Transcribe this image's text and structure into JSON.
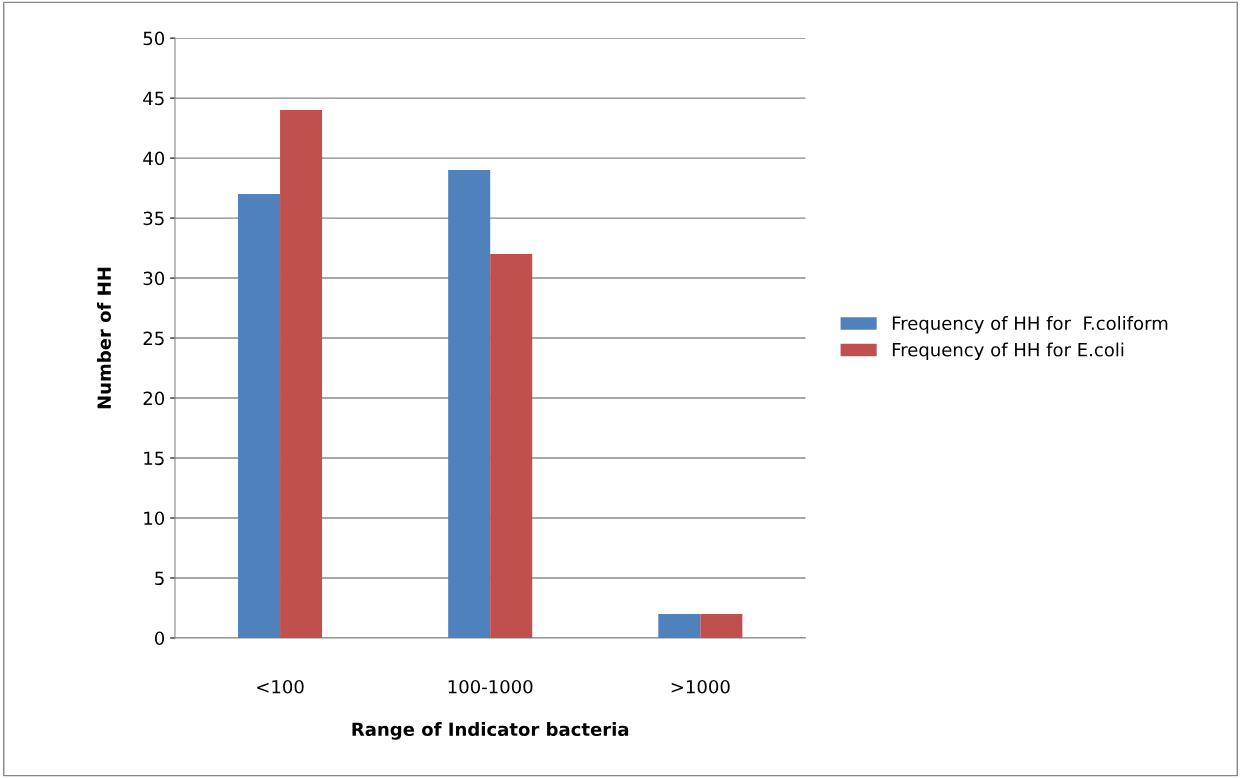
{
  "chart_data": {
    "type": "bar",
    "xlabel": "Range of Indicator bacteria",
    "ylabel": "Number of HH",
    "categories": [
      "<100",
      "100-1000",
      ">1000"
    ],
    "series": [
      {
        "name": "Frequency of HH for  F.coliform",
        "color": "#4f81bd",
        "values": [
          37,
          39,
          2
        ]
      },
      {
        "name": "Frequency of HH for E.coli",
        "color": "#c0504d",
        "values": [
          44,
          32,
          2
        ]
      }
    ],
    "ylim": [
      0,
      50
    ],
    "yticks": [
      0,
      5,
      10,
      15,
      20,
      25,
      30,
      35,
      40,
      45,
      50
    ],
    "grid": "y",
    "legend": "right"
  }
}
